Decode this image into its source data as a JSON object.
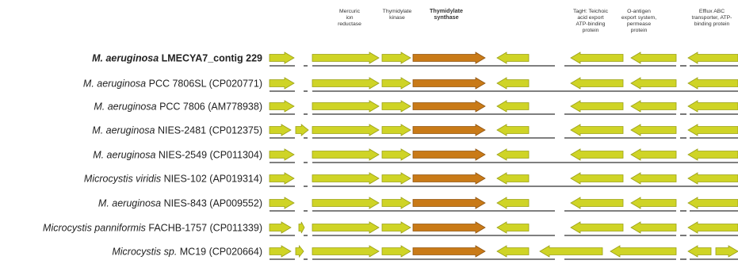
{
  "colors": {
    "gene_fill": "#cfd426",
    "gene_stroke": "#9aa016",
    "highlight_fill": "#c97a17",
    "highlight_stroke": "#8f5410",
    "backbone": "#555555"
  },
  "gene_titles": [
    {
      "lines": [
        "Mercuric",
        "ion",
        "reductase"
      ],
      "bold": false
    },
    {
      "lines": [
        "Thymidylate",
        "kinase"
      ],
      "bold": false
    },
    {
      "lines": [
        "Thymidylate",
        "synthase"
      ],
      "bold": true
    },
    {
      "lines": [
        "TagH: Teichoic",
        "acid export",
        "ATP-binding",
        "protein"
      ],
      "bold": false
    },
    {
      "lines": [
        "O-antigen",
        "export system,",
        "permease",
        "protein"
      ],
      "bold": false
    },
    {
      "lines": [
        "Efflux ABC",
        "transporter, ATP-",
        "binding protein"
      ],
      "bold": false
    }
  ],
  "strains": [
    {
      "species": "M. aeruginosa",
      "strain": "LMECYA7_contig 229",
      "bold": true
    },
    {
      "species": "M. aeruginosa",
      "strain": "PCC 7806SL (CP020771)",
      "bold": false
    },
    {
      "species": "M. aeruginosa",
      "strain": "PCC 7806 (AM778938)",
      "bold": false
    },
    {
      "species": "M. aeruginosa",
      "strain": "NIES-2481 (CP012375)",
      "bold": false
    },
    {
      "species": "M. aeruginosa",
      "strain": "NIES-2549 (CP011304)",
      "bold": false
    },
    {
      "species": "Microcystis viridis",
      "strain": "NIES-102 (AP019314)",
      "bold": false
    },
    {
      "species": "M. aeruginosa",
      "strain": "NIES-843 (AP009552)",
      "bold": false
    },
    {
      "species": "Microcystis panniformis",
      "strain": "FACHB-1757 (CP011339)",
      "bold": false
    },
    {
      "species": "Microcystis sp.",
      "strain": "MC19 (CP020664)",
      "bold": false
    }
  ]
}
